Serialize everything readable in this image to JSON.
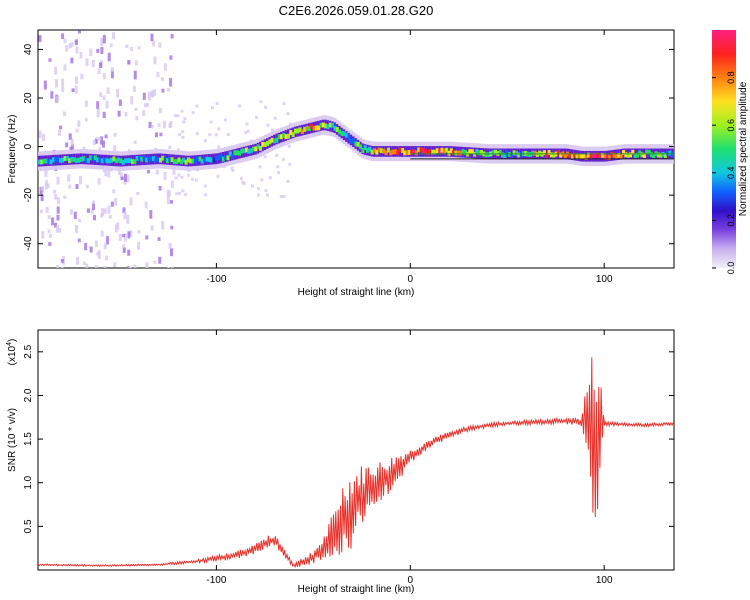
{
  "title": "C2E6.2026.059.01.28.G20",
  "colors": {
    "snr_line": "#e8302a",
    "reference_line": "#2e8b2e",
    "colormap": [
      "#f2f0fa",
      "#d8c8f0",
      "#a070e0",
      "#6020d0",
      "#2010c0",
      "#1060ff",
      "#10c8e0",
      "#20e060",
      "#a0f020",
      "#ffe020",
      "#ff8010",
      "#ff2020",
      "#ff2080"
    ]
  },
  "chart_data": [
    {
      "type": "heatmap",
      "xlabel": "Height of straight line (km)",
      "ylabel": "Frequency (Hz)",
      "xlim": [
        -192,
        136
      ],
      "ylim": [
        -50,
        48
      ],
      "x_ticks": [
        {
          "v": -100,
          "label": "-100"
        },
        {
          "v": 0,
          "label": "0"
        },
        {
          "v": 100,
          "label": "100"
        }
      ],
      "y_ticks": [
        {
          "v": 40,
          "label": "40"
        },
        {
          "v": 20,
          "label": "20"
        },
        {
          "v": 0,
          "label": "0"
        },
        {
          "v": -20,
          "label": "-20"
        },
        {
          "v": -40,
          "label": "-40"
        }
      ],
      "reference_line_y": -3,
      "ridge": {
        "x": [
          -192,
          -170,
          -150,
          -130,
          -115,
          -100,
          -90,
          -80,
          -70,
          -60,
          -50,
          -45,
          -40,
          -35,
          -30,
          -25,
          -20,
          -10,
          0,
          20,
          40,
          60,
          80,
          88,
          95,
          100,
          110,
          136
        ],
        "y": [
          -6,
          -5,
          -6,
          -5,
          -6,
          -5,
          -3,
          -1,
          3,
          6,
          8,
          9,
          8,
          5,
          2,
          -1,
          -2,
          -2,
          -2,
          -2,
          -3,
          -3,
          -3,
          -4,
          -4,
          -4,
          -3,
          -3
        ],
        "amplitude": [
          0.55,
          0.5,
          0.55,
          0.5,
          0.6,
          0.5,
          0.6,
          0.6,
          0.65,
          0.7,
          0.75,
          0.7,
          0.6,
          0.5,
          0.55,
          0.6,
          0.65,
          0.75,
          0.85,
          0.8,
          0.55,
          0.6,
          0.9,
          0.7,
          0.95,
          0.85,
          0.75,
          0.5
        ]
      },
      "colorbar": {
        "label": "Normalized spectral amplitude",
        "range": [
          0,
          1
        ],
        "ticks": [
          {
            "v": 0.0,
            "label": "0.0"
          },
          {
            "v": 0.2,
            "label": "0.2"
          },
          {
            "v": 0.4,
            "label": "0.4"
          },
          {
            "v": 0.6,
            "label": "0.6"
          },
          {
            "v": 0.8,
            "label": "0.8"
          }
        ]
      }
    },
    {
      "type": "line",
      "xlabel": "Height of straight line (km)",
      "ylabel": "SNR (10 * v/v)",
      "y_multiplier": "(x10",
      "y_multiplier_exp": "4",
      "y_multiplier_close": ")",
      "xlim": [
        -192,
        136
      ],
      "ylim": [
        0,
        2.75
      ],
      "x_ticks": [
        {
          "v": -100,
          "label": "-100"
        },
        {
          "v": 0,
          "label": "0"
        },
        {
          "v": 100,
          "label": "100"
        }
      ],
      "y_ticks": [
        {
          "v": 0.5,
          "label": "0.5"
        },
        {
          "v": 1.0,
          "label": "1.0"
        },
        {
          "v": 1.5,
          "label": "1.5"
        },
        {
          "v": 2.0,
          "label": "2.0"
        },
        {
          "v": 2.5,
          "label": "2.5"
        }
      ],
      "series": [
        {
          "x": [
            -192,
            -160,
            -130,
            -110,
            -95,
            -85,
            -75,
            -70,
            -65,
            -60,
            -55,
            -50,
            -45,
            -40,
            -35,
            -30,
            -25,
            -20,
            -15,
            -10,
            -5,
            0,
            10,
            20,
            30,
            40,
            50,
            60,
            70,
            80,
            88,
            92,
            95,
            97,
            100,
            110,
            120,
            136
          ],
          "y": [
            0.06,
            0.05,
            0.06,
            0.1,
            0.15,
            0.2,
            0.3,
            0.35,
            0.2,
            0.05,
            0.1,
            0.15,
            0.25,
            0.35,
            0.6,
            0.7,
            0.85,
            0.95,
            1.0,
            1.1,
            1.2,
            1.3,
            1.45,
            1.55,
            1.62,
            1.66,
            1.68,
            1.69,
            1.7,
            1.71,
            1.7,
            1.72,
            1.5,
            1.6,
            1.68,
            1.67,
            1.66,
            1.68
          ],
          "jitter": [
            0.01,
            0.01,
            0.01,
            0.02,
            0.04,
            0.05,
            0.07,
            0.08,
            0.05,
            0.03,
            0.05,
            0.08,
            0.12,
            0.3,
            0.4,
            0.45,
            0.35,
            0.3,
            0.25,
            0.2,
            0.15,
            0.08,
            0.05,
            0.04,
            0.03,
            0.03,
            0.02,
            0.03,
            0.03,
            0.04,
            0.04,
            0.6,
            1.1,
            0.9,
            0.03,
            0.02,
            0.02,
            0.02
          ]
        }
      ]
    }
  ]
}
